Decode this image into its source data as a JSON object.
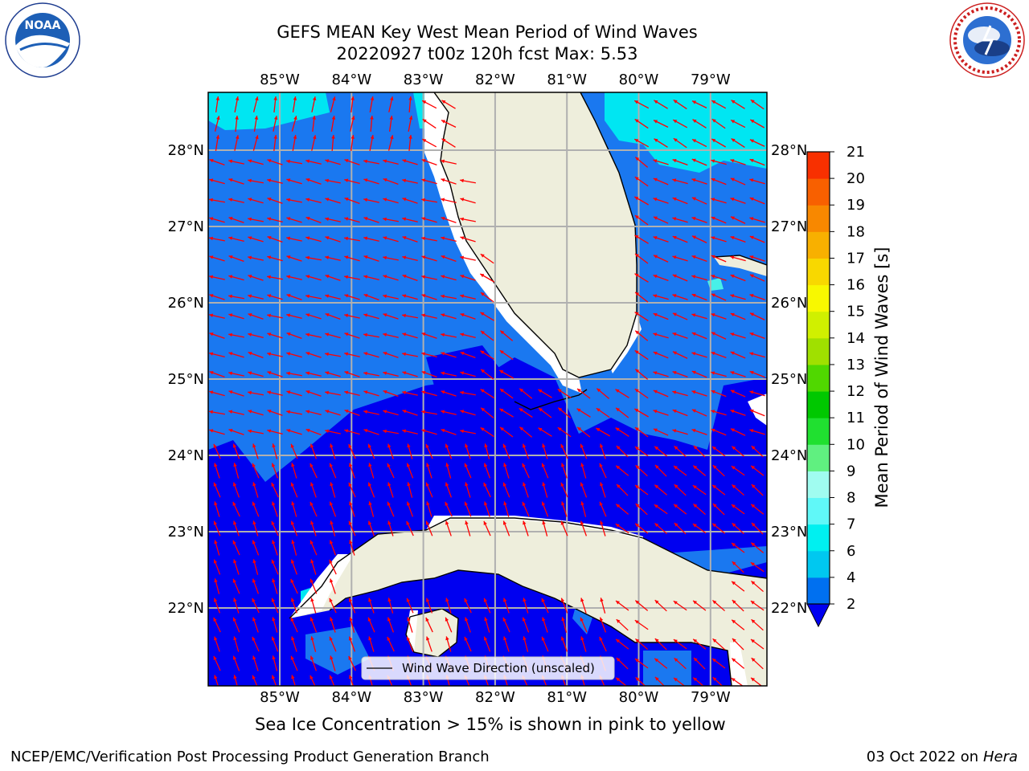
{
  "title": {
    "line1": "GEFS MEAN Key West Mean Period of Wind Waves",
    "line2": "20220927 t00z 120h fcst   Max: 5.53"
  },
  "map": {
    "lon_labels": [
      "85°W",
      "84°W",
      "83°W",
      "82°W",
      "81°W",
      "80°W",
      "79°W"
    ],
    "lat_labels": [
      "28°N",
      "27°N",
      "26°N",
      "25°N",
      "24°N",
      "23°N",
      "22°N"
    ],
    "legend_label": "Wind Wave Direction (unscaled)",
    "arrow_color": "#ff0000",
    "land_color": "#eeeedc",
    "coast_color": "#000000"
  },
  "colorbar": {
    "label": "Mean Period of Wind Waves [s]",
    "ticks": [
      "2",
      "4",
      "6",
      "7",
      "8",
      "9",
      "10",
      "11",
      "12",
      "13",
      "14",
      "15",
      "16",
      "17",
      "18",
      "19",
      "20",
      "21"
    ],
    "colors": [
      "#0070f0",
      "#00c8f0",
      "#00f0f0",
      "#60f8f8",
      "#a0fcf0",
      "#60f080",
      "#20e030",
      "#00c800",
      "#50d800",
      "#a0e000",
      "#d0f000",
      "#f8f800",
      "#f8d800",
      "#f8b000",
      "#f88800",
      "#f86000",
      "#f83000",
      "#f80000"
    ],
    "under_color": "#0000f0"
  },
  "palette": {
    "p2": "#0000f0",
    "p3": "#1a78f0",
    "p4": "#00e6f2",
    "p5": "#48f0e8"
  },
  "logos": {
    "noaa_text": "NOAA",
    "nws_text": "NATIONAL WEATHER SERVICE"
  },
  "footer": {
    "sea_ice_note": "Sea Ice Concentration > 15% is shown in pink to yellow",
    "org": "NCEP/EMC/Verification Post Processing Product Generation Branch",
    "date": "03 Oct 2022 on",
    "machine": "Hera"
  }
}
